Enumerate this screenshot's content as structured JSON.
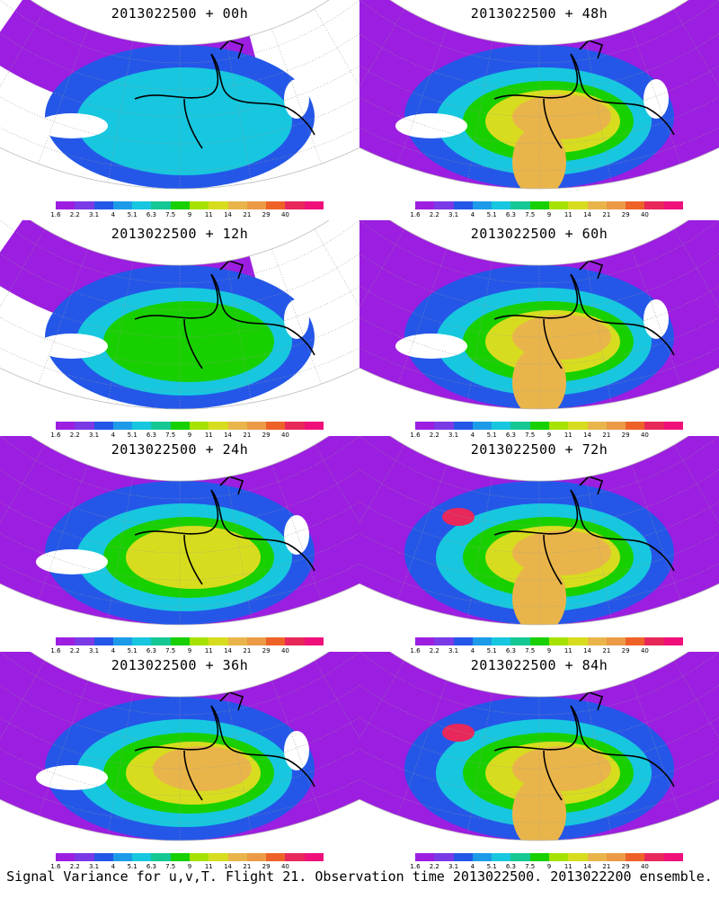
{
  "colorbar": {
    "ticks": [
      "1.6",
      "2.2",
      "3.1",
      "4",
      "5.1",
      "6.3",
      "7.5",
      "9",
      "11",
      "14",
      "21",
      "29",
      "40"
    ],
    "colors": [
      "#9c1ee0",
      "#7a3ae6",
      "#2457e8",
      "#1d9be8",
      "#17c7df",
      "#14c894",
      "#18d000",
      "#a6e200",
      "#d7dd1e",
      "#e9b54a",
      "#eb9a45",
      "#ee6228",
      "#e8285a",
      "#f0107a"
    ]
  },
  "panels": [
    {
      "title": "2013022500 + 00h"
    },
    {
      "title": "2013022500 + 48h"
    },
    {
      "title": "2013022500 + 12h"
    },
    {
      "title": "2013022500 + 60h"
    },
    {
      "title": "2013022500 + 24h"
    },
    {
      "title": "2013022500 + 72h"
    },
    {
      "title": "2013022500 + 36h"
    },
    {
      "title": "2013022500 + 84h"
    }
  ],
  "caption": "Signal Variance for u,v,T. Flight 21. Observation time 2013022500. 2013022200 ensemble."
}
